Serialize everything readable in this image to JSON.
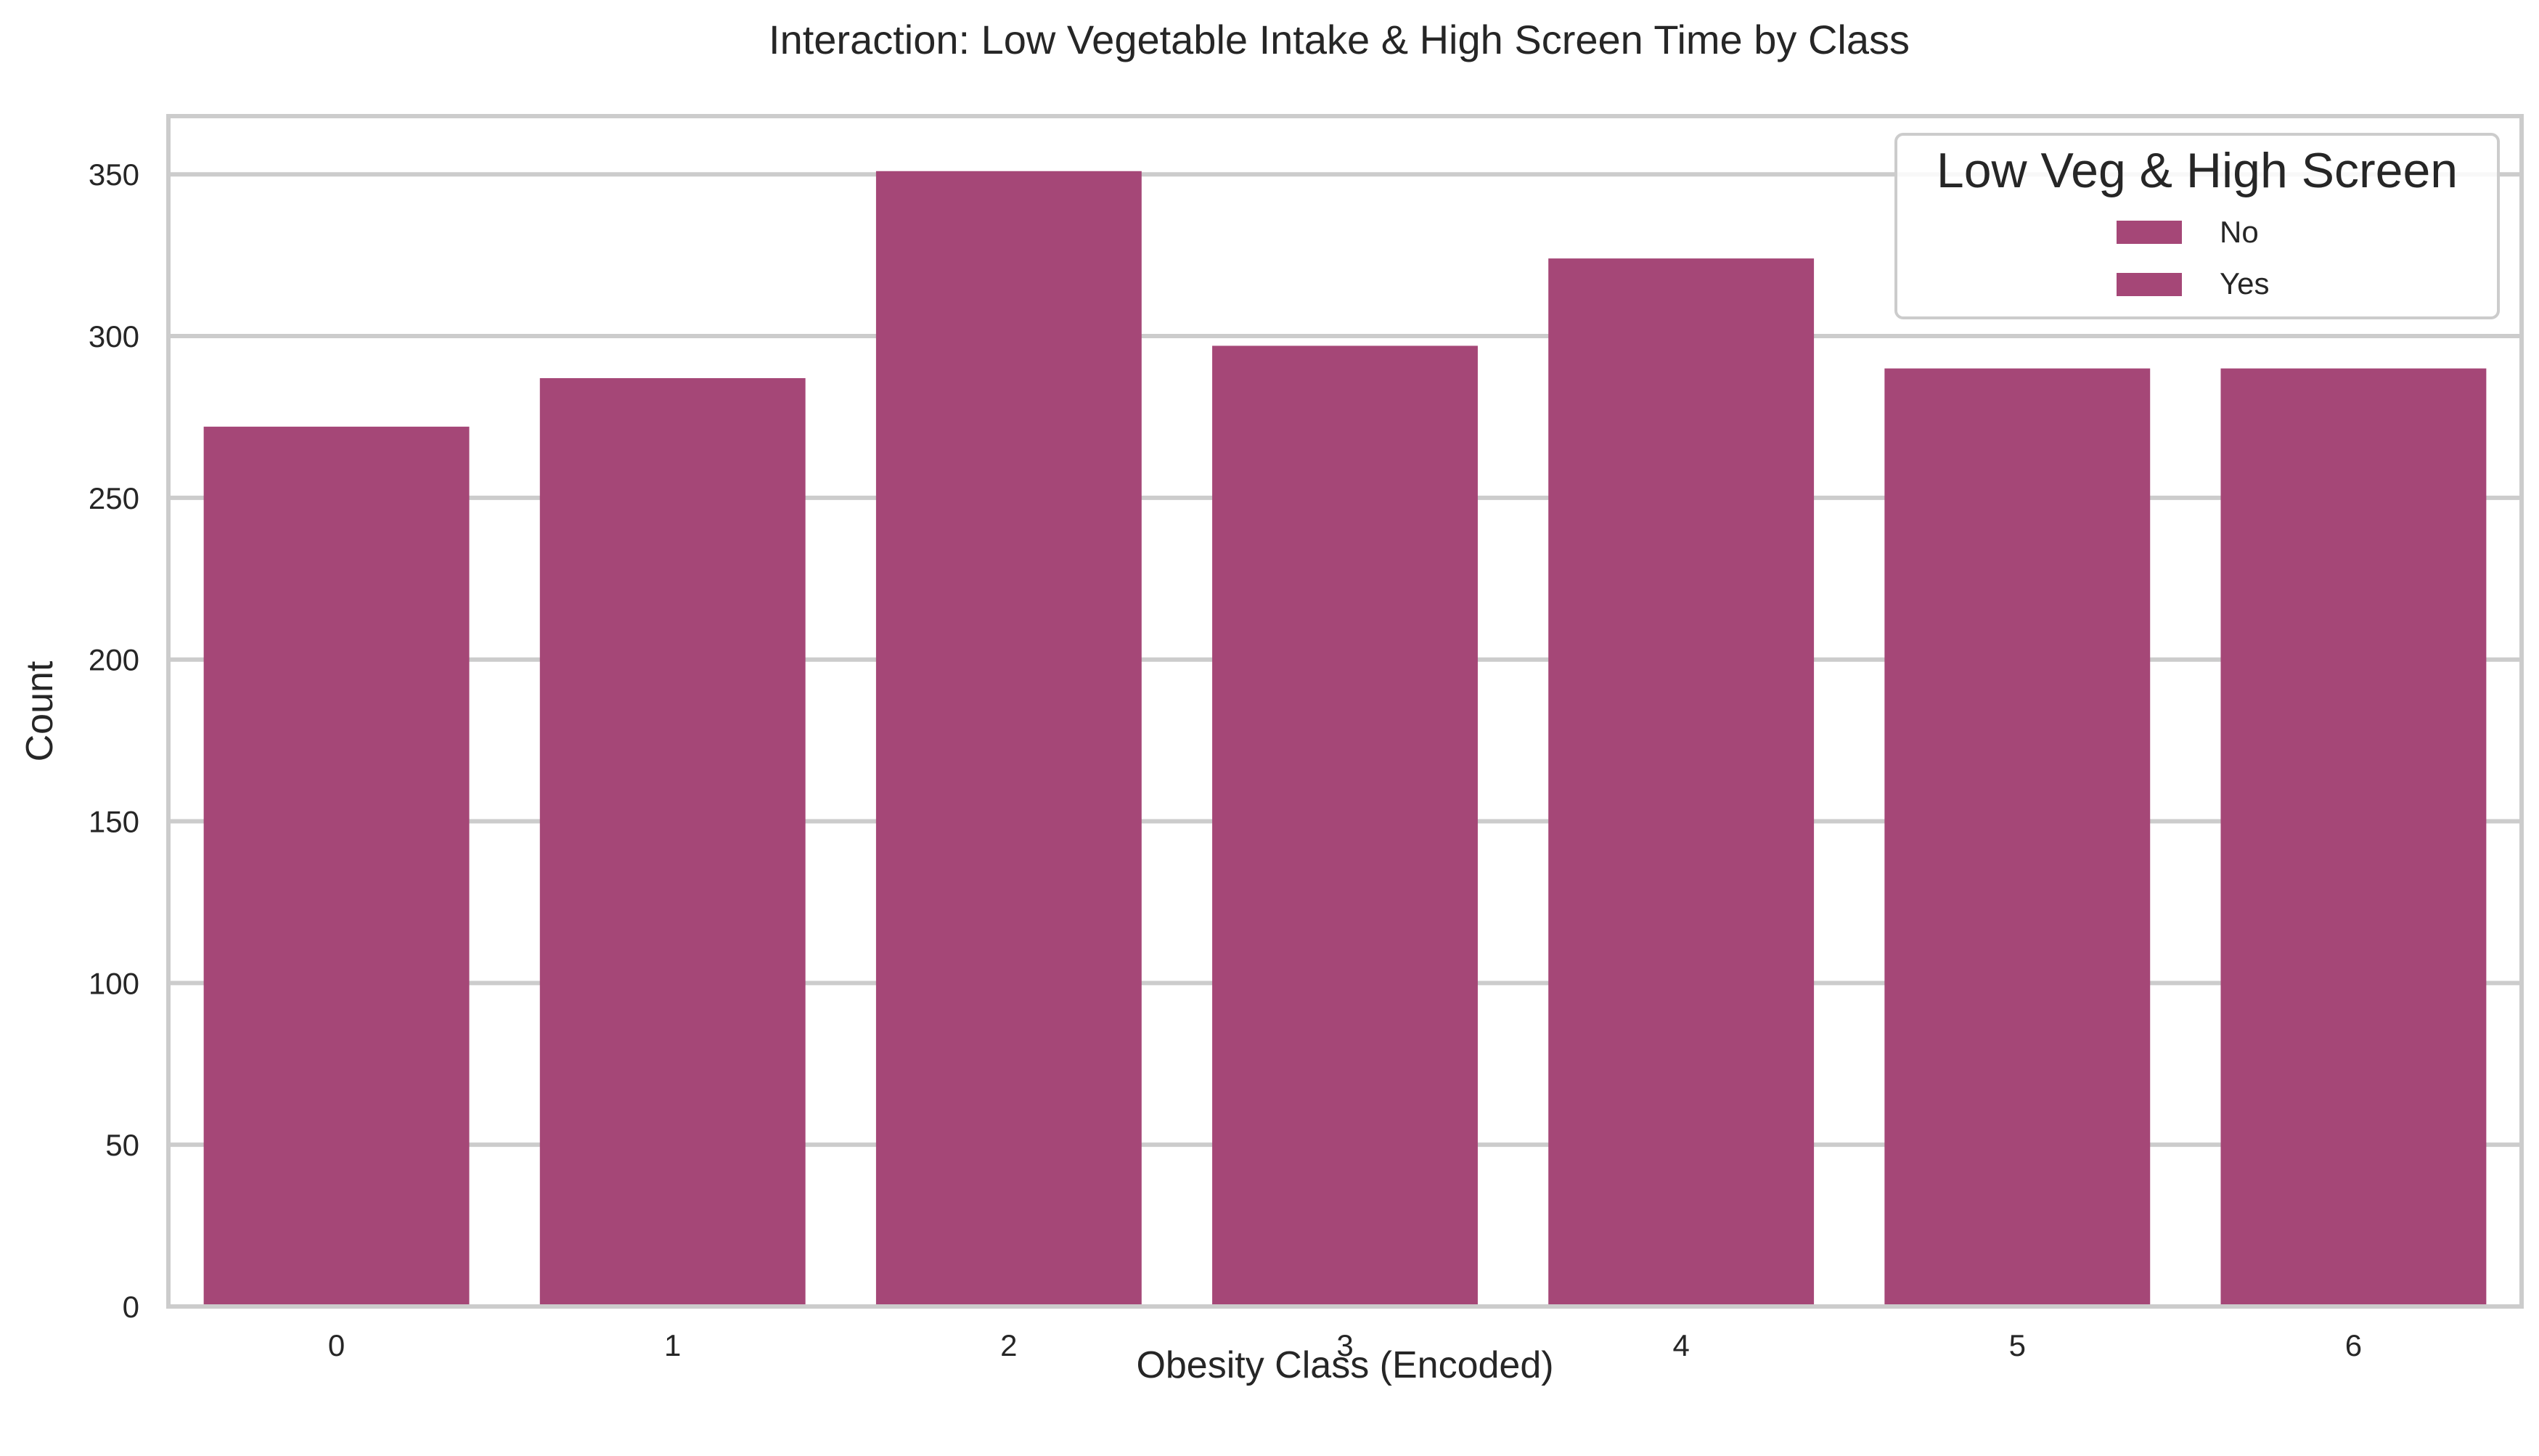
{
  "chart_data": {
    "type": "bar",
    "title": "Interaction: Low Vegetable Intake & High Screen Time by Class",
    "xlabel": "Obesity Class (Encoded)",
    "ylabel": "Count",
    "categories": [
      "0",
      "1",
      "2",
      "3",
      "4",
      "5",
      "6"
    ],
    "values": [
      272,
      287,
      351,
      297,
      324,
      290,
      290
    ],
    "ylim": [
      0,
      368
    ],
    "yticks": [
      0,
      50,
      100,
      150,
      200,
      250,
      300,
      350
    ],
    "grid": "horizontal",
    "bar_color": "#a54777",
    "legend": {
      "title": "Low Veg & High Screen",
      "placement": "top-right",
      "entries": [
        {
          "label": "No",
          "color": "#a54777"
        },
        {
          "label": "Yes",
          "color": "#a54777"
        }
      ]
    }
  }
}
